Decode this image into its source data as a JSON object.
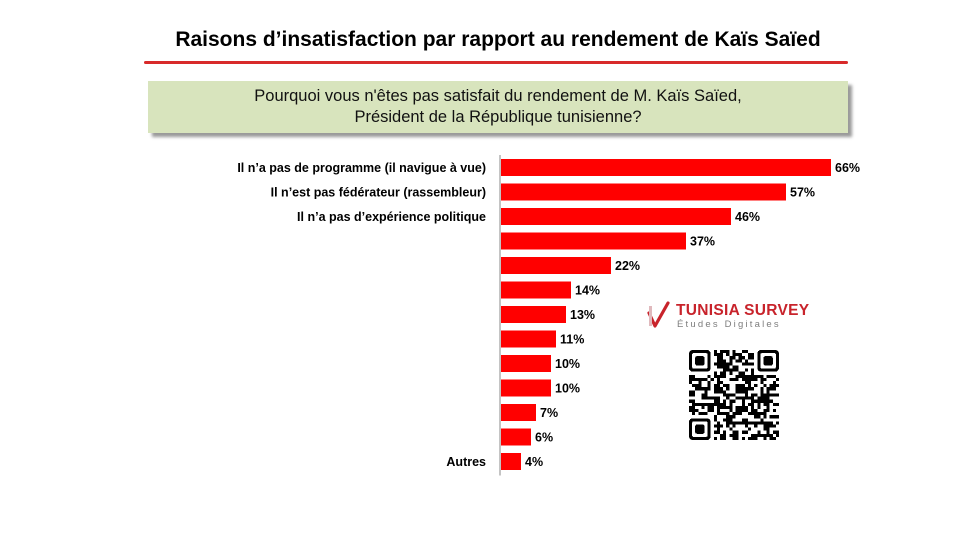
{
  "header": {
    "title": "Raisons d’insatisfaction par rapport au rendement  de Kaïs Saïed",
    "title_rule_color": "#d82a2a"
  },
  "question": {
    "line1": "Pourquoi vous n'êtes pas satisfait du rendement de M. Kaïs Saïed,",
    "line2": "Président de la République tunisienne?",
    "background_color": "#d8e4bd"
  },
  "brand": {
    "name": "TUNISIA SURVEY",
    "tagline": "Études Digitales",
    "logo_icon": "checkmark-logo-icon",
    "qr_icon": "qr-code-icon",
    "color": "#c8232b"
  },
  "chart_data": {
    "type": "bar",
    "orientation": "horizontal",
    "categories": [
      "Il n’a pas de programme (il navigue à vue)",
      "Il n’est pas fédérateur (rassembleur)",
      "Il n’a pas d’expérience politique",
      "",
      "",
      "",
      "",
      "",
      "",
      "",
      "",
      "",
      "Autres"
    ],
    "values": [
      66,
      57,
      46,
      37,
      22,
      14,
      13,
      11,
      10,
      10,
      7,
      6,
      4
    ],
    "value_labels": [
      "66%",
      "57%",
      "46%",
      "37%",
      "22%",
      "14%",
      "13%",
      "11%",
      "10%",
      "10%",
      "7%",
      "6%",
      "4%"
    ],
    "unit": "%",
    "xlim": [
      0,
      66
    ],
    "bar_color": "#ff0000",
    "grid": false,
    "legend": "none"
  }
}
